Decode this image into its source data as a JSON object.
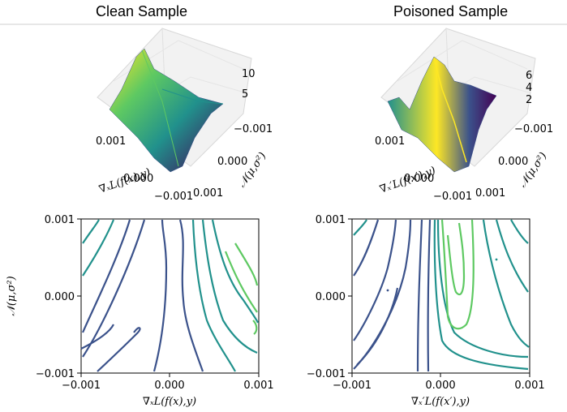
{
  "panels": {
    "left_title": "Clean Sample",
    "right_title": "Poisoned Sample"
  },
  "chart_data": [
    {
      "type": "surface",
      "name": "clean-surface",
      "xlabel": "∇ₓL(f(x),y)",
      "ylabel": "𝒩(μ,σ²)",
      "x_ticks": [
        "0.001",
        "0.000",
        "−0.001"
      ],
      "y_ticks": [
        "−0.001",
        "0.000",
        "0.001"
      ],
      "z_ticks": [
        "10",
        "5"
      ],
      "colormap": "viridis"
    },
    {
      "type": "surface",
      "name": "poisoned-surface",
      "xlabel": "∇ₓ′L(f(x′),y)",
      "ylabel": "𝒩(μ,σ²)",
      "x_ticks": [
        "0.001",
        "0.000",
        "−0.001"
      ],
      "y_ticks": [
        "−0.001",
        "0.000",
        "0.001"
      ],
      "z_ticks": [
        "6",
        "4",
        "2"
      ],
      "colormap": "viridis"
    },
    {
      "type": "contour",
      "name": "clean-contour",
      "xlabel": "∇ₓL(f(x),y)",
      "ylabel": "𝒩(μ,σ²)",
      "xlim": [
        -0.001,
        0.001
      ],
      "ylim": [
        -0.001,
        0.001
      ],
      "x_ticks": [
        "−0.001",
        "0.000",
        "0.001"
      ],
      "y_ticks": [
        "0.001",
        "0.000",
        "−0.001"
      ],
      "colormap": "viridis"
    },
    {
      "type": "contour",
      "name": "poisoned-contour",
      "xlabel": "∇ₓ′L(f(x′),y)",
      "ylabel": "",
      "xlim": [
        -0.001,
        0.001
      ],
      "ylim": [
        -0.001,
        0.001
      ],
      "x_ticks": [
        "−0.001",
        "0.000",
        "0.001"
      ],
      "y_ticks": [
        "0.001",
        "0.000",
        "−0.001"
      ],
      "colormap": "viridis"
    }
  ],
  "colors": {
    "viridis": [
      "#440154",
      "#3b528b",
      "#21918c",
      "#5ec962",
      "#fde725"
    ]
  }
}
